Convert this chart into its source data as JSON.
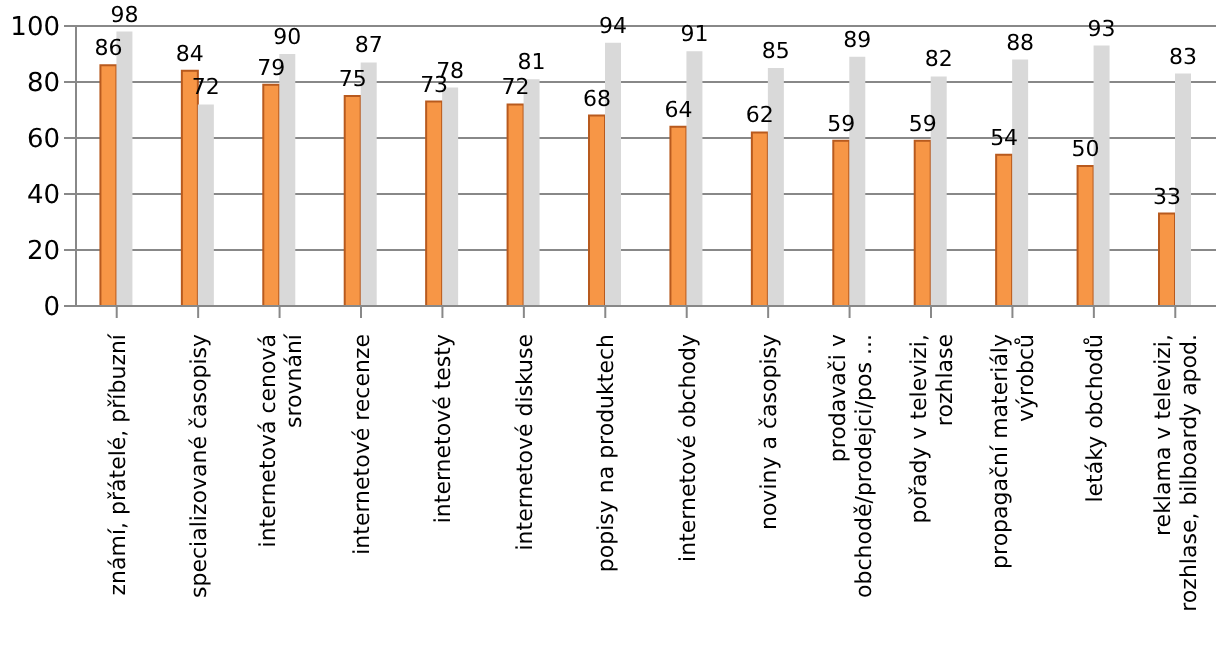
{
  "chart_data": {
    "type": "bar",
    "categories": [
      "známí, přátelé, příbuzní",
      "specializované časopisy",
      "internetová cenová srovnání",
      "internetové recenze",
      "internetové testy",
      "internetové diskuse",
      "popisy na produktech",
      "internetové obchody",
      "noviny a časopisy",
      "prodavači v obchodě/prodejci/pos ...",
      "pořady v televizi, rozhlase",
      "propagační materiály výrobců",
      "letáky obchodů",
      "reklama v televizi, rozhlase, bilboardy apod."
    ],
    "series": [
      {
        "color": "#f79646",
        "values": [
          86,
          84,
          79,
          75,
          73,
          72,
          68,
          64,
          62,
          59,
          59,
          54,
          50,
          33
        ]
      },
      {
        "color": "#d9d9d9",
        "values": [
          98,
          72,
          90,
          87,
          78,
          81,
          94,
          91,
          85,
          89,
          82,
          88,
          93,
          83
        ]
      }
    ],
    "ylim": [
      0,
      100
    ],
    "yticks": [
      0,
      20,
      40,
      60,
      80,
      100
    ],
    "grid": "y",
    "data_labels": true,
    "legend": false
  }
}
